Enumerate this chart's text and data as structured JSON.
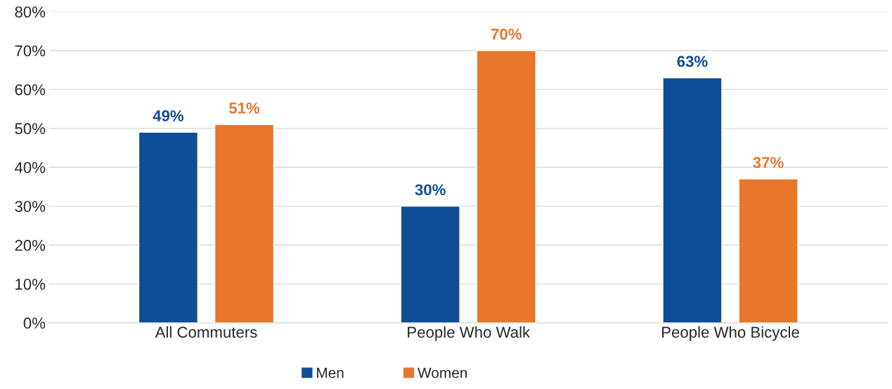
{
  "chart_data": {
    "type": "bar",
    "categories": [
      "All Commuters",
      "People Who Walk",
      "People Who Bicycle"
    ],
    "series": [
      {
        "name": "Men",
        "color": "#0f4d96",
        "values": [
          49,
          30,
          63
        ],
        "value_labels": [
          "49%",
          "30%",
          "63%"
        ]
      },
      {
        "name": "Women",
        "color": "#e8762b",
        "values": [
          51,
          70,
          37
        ],
        "value_labels": [
          "51%",
          "70%",
          "37%"
        ]
      }
    ],
    "ylim": [
      0,
      80
    ],
    "yticks": [
      {
        "value": 0,
        "label": "0%"
      },
      {
        "value": 10,
        "label": "10%"
      },
      {
        "value": 20,
        "label": "20%"
      },
      {
        "value": 30,
        "label": "30%"
      },
      {
        "value": 40,
        "label": "40%"
      },
      {
        "value": 50,
        "label": "50%"
      },
      {
        "value": 60,
        "label": "60%"
      },
      {
        "value": 70,
        "label": "70%"
      },
      {
        "value": 80,
        "label": "80%"
      }
    ],
    "grid": "y",
    "legend": "bottom"
  }
}
